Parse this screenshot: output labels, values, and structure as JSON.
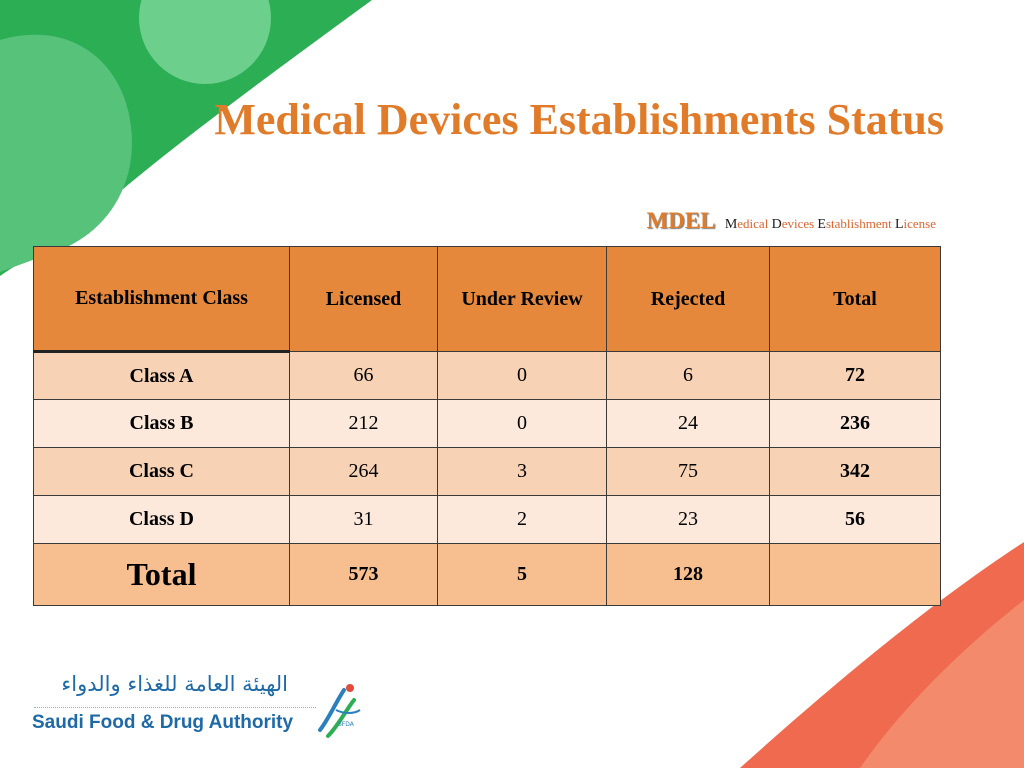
{
  "slide": {
    "title": "Medical Devices Establishments Status",
    "subtitle": {
      "abbr": "MDEL",
      "parts": [
        {
          "cap": "M",
          "rest": "edical "
        },
        {
          "cap": "D",
          "rest": "evices "
        },
        {
          "cap": "E",
          "rest": "stablishment "
        },
        {
          "cap": "L",
          "rest": "icense"
        }
      ]
    },
    "colors": {
      "title": "#e07b2a",
      "header_bg": "#e6883b",
      "row_odd": "#f8d2b4",
      "row_even": "#fce9dc",
      "total_row": "#f7bf8f",
      "green": "#2cae55",
      "coral": "#ef6a4e"
    }
  },
  "table": {
    "headers": [
      "Establishment Class",
      "Licensed",
      "Under Review",
      "Rejected",
      "Total"
    ],
    "rows": [
      {
        "cls": "Class A",
        "licensed": "66",
        "review": "0",
        "rejected": "6",
        "total": "72"
      },
      {
        "cls": "Class B",
        "licensed": "212",
        "review": "0",
        "rejected": "24",
        "total": "236"
      },
      {
        "cls": "Class C",
        "licensed": "264",
        "review": "3",
        "rejected": "75",
        "total": "342"
      },
      {
        "cls": "Class D",
        "licensed": "31",
        "review": "2",
        "rejected": "23",
        "total": "56"
      }
    ],
    "total_row": {
      "label": "Total",
      "licensed": "573",
      "review": "5",
      "rejected": "128",
      "total": ""
    }
  },
  "logo": {
    "arabic": "الهيئة العامة للغذاء والدواء",
    "english": "Saudi Food & Drug Authority",
    "mark_text": "SFDA",
    "icon": "sfda-logo-icon"
  }
}
